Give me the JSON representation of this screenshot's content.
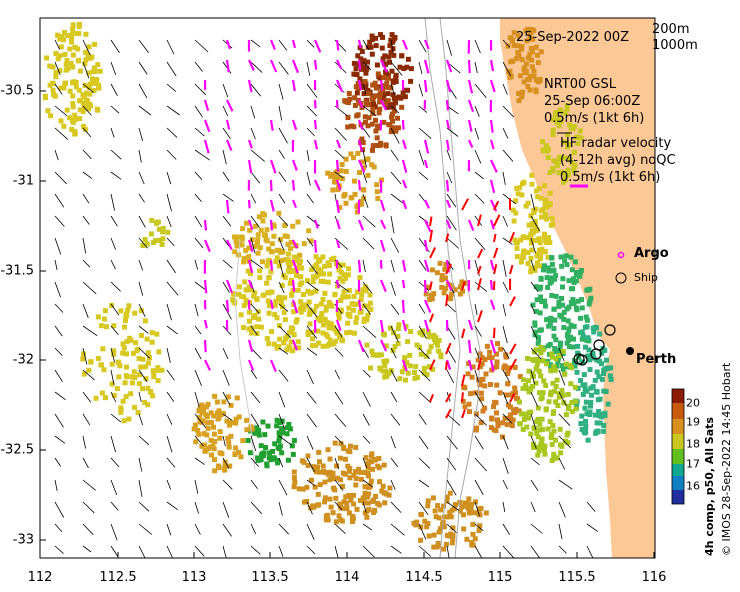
{
  "map": {
    "lon_ticks": [
      "112",
      "112.5",
      "113",
      "113.5",
      "114",
      "114.5",
      "115",
      "115.5",
      "116"
    ],
    "lat_ticks": [
      "-30.5",
      "-31",
      "-31.5",
      "-32",
      "-32.5",
      "-33"
    ],
    "lon_range": [
      112,
      116.1
    ],
    "lat_range": [
      -30.1,
      -33.1
    ]
  },
  "header": {
    "date": "25-Sep-2022 00Z",
    "iso_200": "200m",
    "iso_1000": "1000m"
  },
  "annotations": {
    "nrt_line1": "NRT00 GSL",
    "nrt_line2": "25-Sep 06:00Z",
    "nrt_line3": "0.5m/s (1kt 6h)",
    "hf_line1": "HF radar velocity",
    "hf_line2": "(4-12h avg) noQC",
    "hf_line3": "0.5m/s (1kt 6h)"
  },
  "legend": {
    "argo": "Argo",
    "ship": "Ship"
  },
  "places": {
    "perth": "Perth"
  },
  "colorbar": {
    "ticks": [
      "20",
      "19",
      "18",
      "17",
      "16"
    ],
    "label": "4h comp, p50, All Sats"
  },
  "credit": "© IMOS 28-Sep-2022 14:45 Hobart",
  "colors": {
    "land": "#fcc896",
    "argo_vector": "#ff00ff",
    "hf_vector": "#ff0000",
    "model_vector": "#000000"
  }
}
